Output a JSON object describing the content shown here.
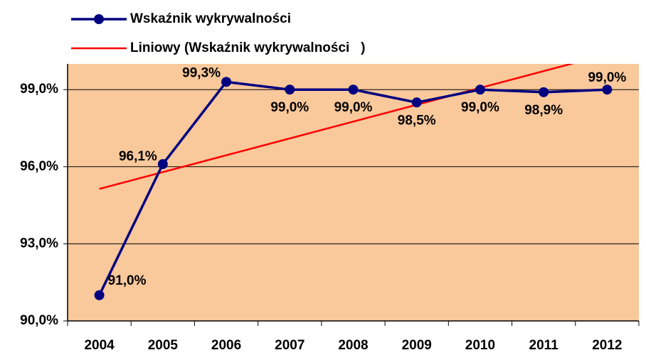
{
  "chart_data": {
    "type": "line",
    "categories": [
      "2004",
      "2005",
      "2006",
      "2007",
      "2008",
      "2009",
      "2010",
      "2011",
      "2012"
    ],
    "series": [
      {
        "name": "Wskaźnik wykrywalności",
        "color": "#000080",
        "values": [
          91.0,
          96.1,
          99.3,
          99.0,
          99.0,
          98.5,
          99.0,
          98.9,
          99.0
        ],
        "value_labels": [
          "91,0%",
          "96,1%",
          "99,3%",
          "99,0%",
          "99,0%",
          "98,5%",
          "99,0%",
          "98,9%",
          "99,0%"
        ]
      },
      {
        "name": "Liniowy (Wskaźnik wykrywalności   )",
        "color": "#ff0000",
        "trendline": "linear"
      }
    ],
    "ylim": [
      90,
      100
    ],
    "yticks": [
      {
        "value": 90,
        "label": "90,0%"
      },
      {
        "value": 93,
        "label": "93,0%"
      },
      {
        "value": 96,
        "label": "96,0%"
      },
      {
        "value": 99,
        "label": "99,0%"
      }
    ],
    "grid": true,
    "plot_background": "#f9c89b"
  }
}
